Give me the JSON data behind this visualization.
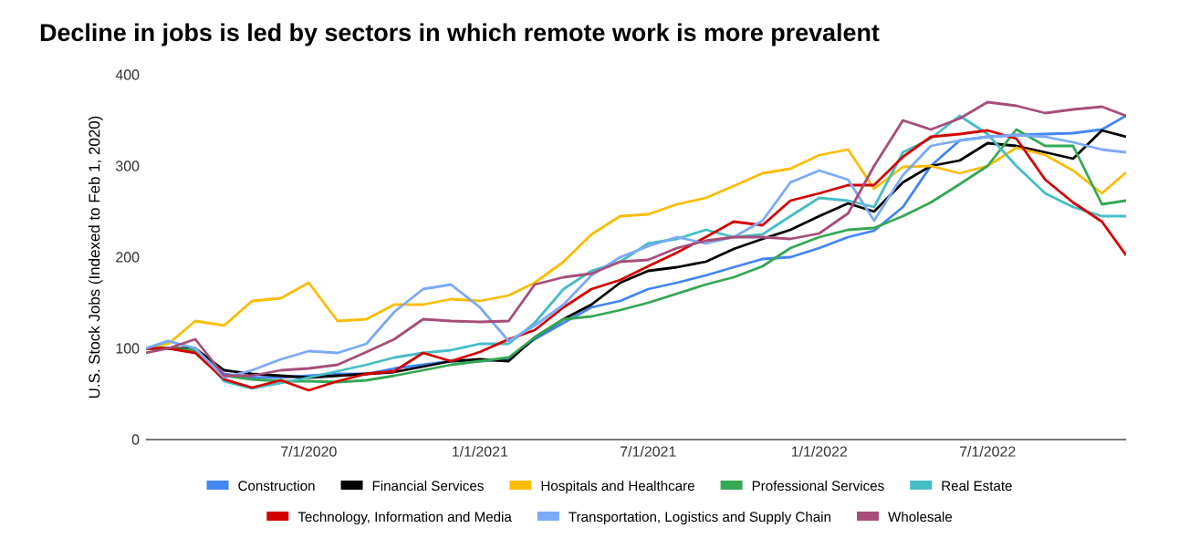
{
  "chart_data": {
    "type": "line",
    "title": "Decline in jobs is led by sectors in which remote work is more prevalent",
    "ylabel": "U.S. Stock Jobs (Indexed to Feb 1, 2020)",
    "x": [
      "2020-01-08",
      "2020-02-01",
      "2020-03-01",
      "2020-04-01",
      "2020-05-01",
      "2020-06-01",
      "2020-07-01",
      "2020-08-01",
      "2020-09-01",
      "2020-10-01",
      "2020-11-01",
      "2020-12-01",
      "2021-01-01",
      "2021-02-01",
      "2021-03-01",
      "2021-04-01",
      "2021-05-01",
      "2021-06-01",
      "2021-07-01",
      "2021-08-01",
      "2021-09-01",
      "2021-10-01",
      "2021-11-01",
      "2021-12-01",
      "2022-01-01",
      "2022-02-01",
      "2022-03-01",
      "2022-04-01",
      "2022-05-01",
      "2022-06-01",
      "2022-07-01",
      "2022-08-01",
      "2022-09-01",
      "2022-10-01",
      "2022-11-01",
      "2022-11-27"
    ],
    "series": [
      {
        "name": "Construction",
        "color": "#4285f4",
        "values": [
          100,
          100,
          98,
          72,
          68,
          68,
          70,
          72,
          72,
          78,
          82,
          86,
          86,
          88,
          110,
          128,
          145,
          152,
          165,
          172,
          180,
          189,
          198,
          200,
          210,
          222,
          229,
          255,
          300,
          328,
          332,
          334,
          335,
          336,
          340,
          355
        ]
      },
      {
        "name": "Financial Services",
        "color": "#000000",
        "values": [
          100,
          100,
          100,
          76,
          72,
          70,
          68,
          70,
          72,
          74,
          80,
          86,
          88,
          86,
          112,
          132,
          148,
          172,
          185,
          189,
          195,
          209,
          220,
          230,
          245,
          259,
          250,
          282,
          300,
          306,
          325,
          322,
          315,
          308,
          339,
          332
        ]
      },
      {
        "name": "Hospitals and Healthcare",
        "color": "#fbbc04",
        "values": [
          100,
          105,
          130,
          125,
          152,
          155,
          172,
          130,
          132,
          148,
          148,
          154,
          152,
          158,
          172,
          195,
          225,
          245,
          247,
          258,
          265,
          278,
          292,
          297,
          312,
          318,
          275,
          299,
          300,
          292,
          300,
          320,
          312,
          295,
          270,
          293
        ]
      },
      {
        "name": "Professional Services",
        "color": "#34a853",
        "values": [
          100,
          100,
          98,
          70,
          66,
          64,
          64,
          63,
          65,
          70,
          76,
          82,
          86,
          90,
          112,
          132,
          135,
          142,
          150,
          160,
          170,
          178,
          190,
          210,
          222,
          230,
          232,
          245,
          260,
          280,
          300,
          340,
          322,
          322,
          258,
          262
        ]
      },
      {
        "name": "Real Estate",
        "color": "#46bdc6",
        "values": [
          100,
          108,
          100,
          64,
          56,
          62,
          68,
          75,
          82,
          90,
          95,
          98,
          105,
          105,
          128,
          165,
          185,
          195,
          215,
          220,
          230,
          222,
          225,
          245,
          265,
          262,
          255,
          315,
          330,
          355,
          335,
          300,
          270,
          255,
          245,
          245
        ]
      },
      {
        "name": "Technology, Information and Media",
        "color": "#d50000",
        "values": [
          100,
          100,
          95,
          66,
          57,
          65,
          54,
          64,
          72,
          75,
          95,
          86,
          96,
          110,
          120,
          145,
          165,
          175,
          190,
          205,
          222,
          239,
          235,
          262,
          270,
          279,
          279,
          310,
          332,
          335,
          339,
          330,
          285,
          260,
          239,
          202
        ]
      },
      {
        "name": "Transportation, Logistics and Supply Chain",
        "color": "#7baaf7",
        "values": [
          100,
          108,
          100,
          68,
          76,
          88,
          97,
          95,
          105,
          140,
          165,
          170,
          145,
          108,
          125,
          148,
          180,
          200,
          212,
          222,
          215,
          222,
          240,
          282,
          295,
          285,
          240,
          290,
          322,
          328,
          332,
          334,
          332,
          326,
          318,
          315
        ]
      },
      {
        "name": "Wholesale",
        "color": "#a64d79",
        "values": [
          95,
          100,
          110,
          70,
          70,
          76,
          78,
          82,
          96,
          110,
          132,
          130,
          129,
          130,
          170,
          178,
          182,
          195,
          197,
          210,
          218,
          222,
          222,
          220,
          226,
          248,
          300,
          350,
          340,
          352,
          370,
          366,
          358,
          362,
          365,
          355
        ]
      }
    ],
    "xlim": [
      "2020-01-08",
      "2022-11-27"
    ],
    "xticks": [
      {
        "value": "2020-07-01",
        "label": "7/1/2020"
      },
      {
        "value": "2021-01-01",
        "label": "1/1/2021"
      },
      {
        "value": "2021-07-01",
        "label": "7/1/2021"
      },
      {
        "value": "2022-01-01",
        "label": "1/1/2022"
      },
      {
        "value": "2022-07-01",
        "label": "7/1/2022"
      }
    ],
    "ylim": [
      0,
      400
    ],
    "yticks": [
      0,
      100,
      200,
      300,
      400
    ],
    "legend": "bottom",
    "marker": "none",
    "line_style": "solid"
  }
}
